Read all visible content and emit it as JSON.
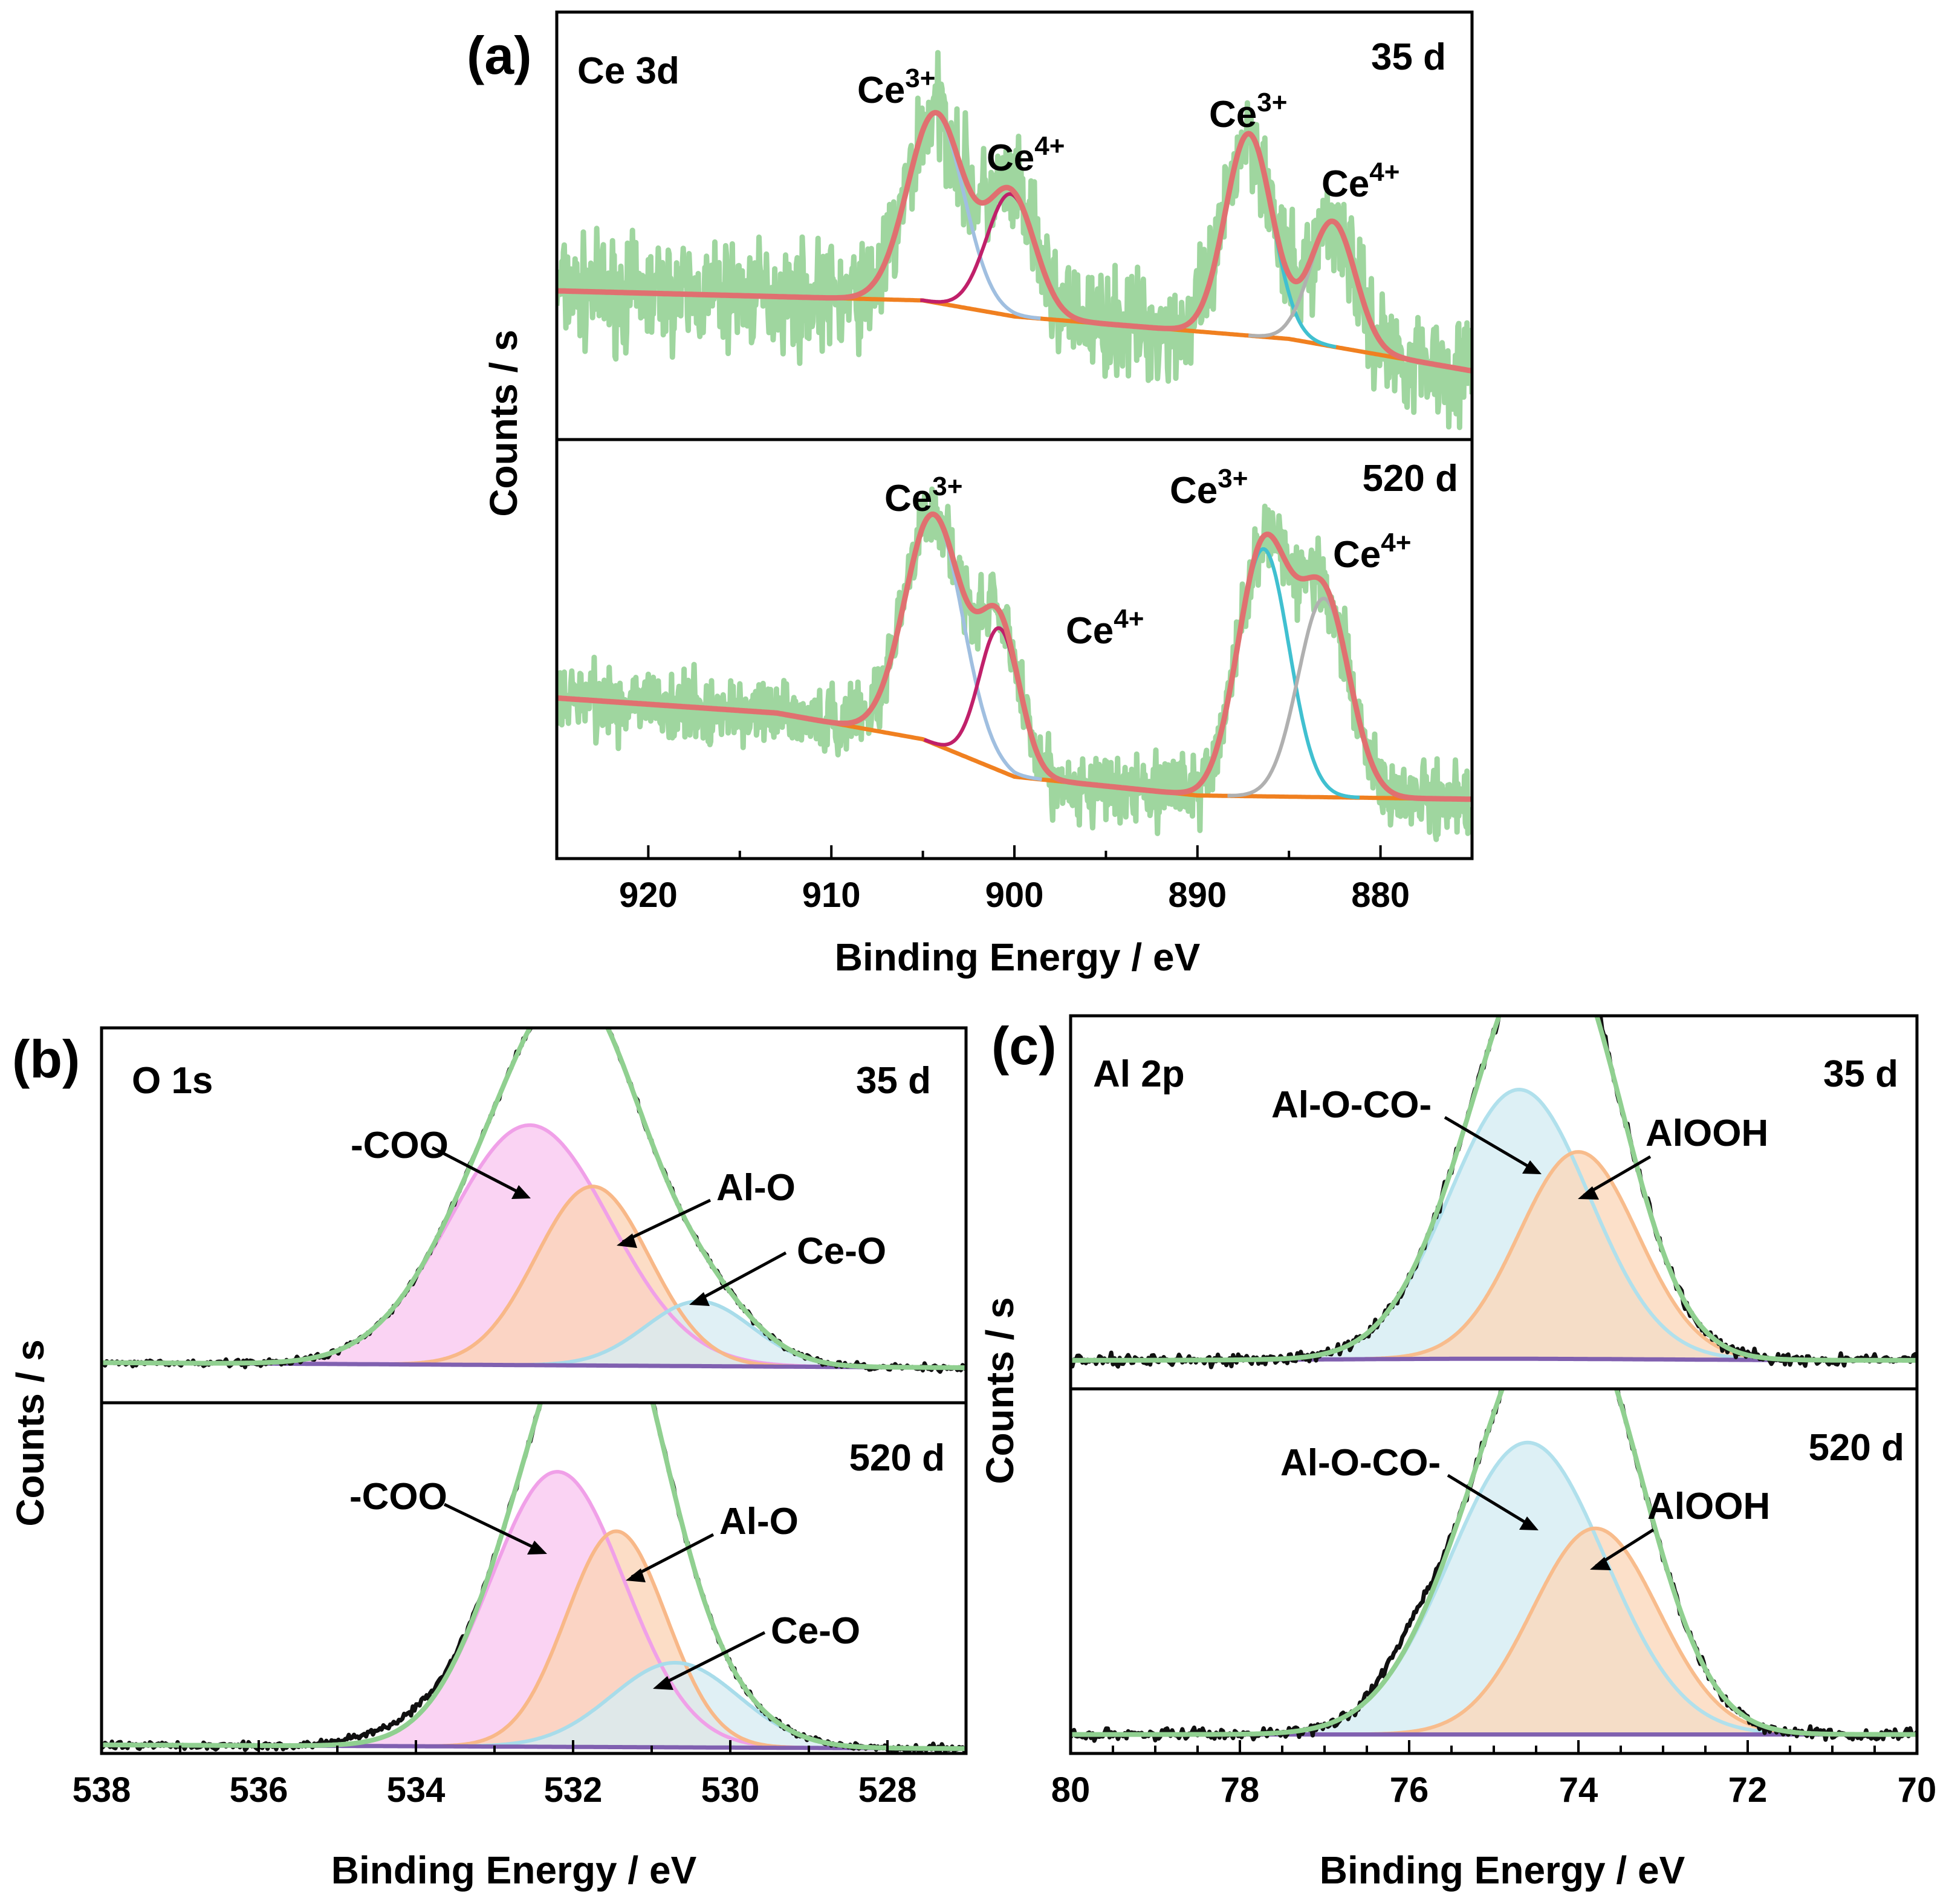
{
  "colors": {
    "raw_a": "#9fd69f",
    "envelope_a": "#e07070",
    "background": "#f08020",
    "ce3_main": "#a0bfe0",
    "ce4_main": "#c0206a",
    "ce3_second": "#40c0d0",
    "ce4_second": "#b0b0b0",
    "raw_bc": "#101010",
    "envelope_bc": "#90d090",
    "baseline_bc": "#8060b0",
    "cooh_fill": "#f9c8f0",
    "cooh_line": "#f0a0e8",
    "alo_fill": "#fbd4b8",
    "alo_line": "#f8b888",
    "ceo_fill": "#d8ecf2",
    "ceo_line": "#a8dcea",
    "al_o_co_fill": "#d4ecf2",
    "al_o_co_line": "#b0e0ec",
    "alooh_fill": "#fbd8bc",
    "alooh_line": "#f8bc8c"
  },
  "chart_data": [
    {
      "id": "a",
      "type": "line",
      "panel_label": "(a)",
      "element": "Ce 3d",
      "xlabel": "Binding Energy / eV",
      "ylabel": "Counts / s",
      "xlim": [
        925,
        875
      ],
      "xticks": [
        920,
        910,
        900,
        890,
        880
      ],
      "xtick_labels": [
        "920",
        "910",
        "900",
        "890",
        "880"
      ],
      "subplots": [
        {
          "time": "35 d",
          "ylim": [
            0,
            100
          ],
          "baseline": [
            [
              925,
              30
            ],
            [
              905,
              27
            ],
            [
              900,
              22
            ],
            [
              885,
              15
            ],
            [
              875,
              5
            ]
          ],
          "peaks": [
            {
              "label": "Ce3+",
              "label_main": "Ce",
              "label_sup": "3+",
              "center": 904.3,
              "height": 59,
              "fwhm": 3.6
            },
            {
              "label": "Ce4+",
              "label_main": "Ce",
              "label_sup": "4+",
              "center": 900.2,
              "height": 38,
              "fwhm": 3.1
            },
            {
              "label": "Ce3+",
              "label_main": "Ce",
              "label_sup": "3+",
              "center": 887.2,
              "height": 63,
              "fwhm": 3.0
            },
            {
              "label": "Ce4+",
              "label_main": "Ce",
              "label_sup": "4+",
              "center": 882.6,
              "height": 39,
              "fwhm": 2.9
            }
          ]
        },
        {
          "time": "520 d",
          "ylim": [
            0,
            100
          ],
          "baseline": [
            [
              925,
              38
            ],
            [
              913,
              34
            ],
            [
              905,
              27
            ],
            [
              900,
              17
            ],
            [
              890,
              12
            ],
            [
              875,
              11
            ]
          ],
          "peaks": [
            {
              "label": "Ce3+",
              "label_main": "Ce",
              "label_sup": "3+",
              "center": 904.4,
              "height": 61,
              "fwhm": 3.7
            },
            {
              "label": "Ce4+",
              "label_main": "Ce",
              "label_sup": "4+",
              "center": 900.8,
              "height": 38,
              "fwhm": 2.6
            },
            {
              "label": "Ce3+",
              "label_main": "Ce",
              "label_sup": "3+",
              "center": 886.4,
              "height": 66,
              "fwhm": 3.3
            },
            {
              "label": "Ce4+",
              "label_main": "Ce",
              "label_sup": "4+",
              "center": 883.1,
              "height": 53,
              "fwhm": 3.3
            }
          ],
          "extra_label": {
            "label_main": "Ce",
            "label_sup": "4+"
          }
        }
      ]
    },
    {
      "id": "b",
      "type": "area",
      "panel_label": "(b)",
      "element": "O 1s",
      "xlabel": "Binding Energy / eV",
      "ylabel": "Counts / s",
      "xlim": [
        538,
        527
      ],
      "xticks": [
        538,
        536,
        534,
        532,
        530,
        528
      ],
      "xtick_labels": [
        "538",
        "536",
        "534",
        "532",
        "530",
        "528"
      ],
      "subplots": [
        {
          "time": "35 d",
          "ylim": [
            0,
            100
          ],
          "peaks": [
            {
              "label": "-COO",
              "center": 532.55,
              "height": 63,
              "fwhm": 2.4
            },
            {
              "label": "Al-O",
              "center": 531.75,
              "height": 47,
              "fwhm": 1.7
            },
            {
              "label": "Ce-O",
              "center": 530.4,
              "height": 17,
              "fwhm": 1.6
            }
          ]
        },
        {
          "time": "520 d",
          "ylim": [
            0,
            100
          ],
          "peaks": [
            {
              "label": "-COO",
              "center": 532.2,
              "height": 65,
              "fwhm": 2.0
            },
            {
              "label": "Al-O",
              "center": 531.45,
              "height": 51,
              "fwhm": 1.5
            },
            {
              "label": "Ce-O",
              "center": 530.7,
              "height": 20,
              "fwhm": 1.9
            }
          ]
        }
      ]
    },
    {
      "id": "c",
      "type": "area",
      "panel_label": "(c)",
      "element": "Al 2p",
      "xlabel": "Binding Energy / eV",
      "ylabel": "Counts / s",
      "xlim": [
        80,
        70
      ],
      "xticks": [
        80,
        78,
        76,
        74,
        72,
        70
      ],
      "xtick_labels": [
        "80",
        "78",
        "76",
        "74",
        "72",
        "70"
      ],
      "subplots": [
        {
          "time": "35 d",
          "ylim": [
            0,
            100
          ],
          "peaks": [
            {
              "label": "Al-O-CO-",
              "center": 74.7,
              "height": 65,
              "fwhm": 1.95
            },
            {
              "label": "AlOOH",
              "center": 74.0,
              "height": 50,
              "fwhm": 1.65
            }
          ]
        },
        {
          "time": "520 d",
          "ylim": [
            0,
            100
          ],
          "peaks": [
            {
              "label": "Al-O-CO-",
              "center": 74.6,
              "height": 68,
              "fwhm": 2.15
            },
            {
              "label": "AlOOH",
              "center": 73.8,
              "height": 48,
              "fwhm": 1.75
            }
          ]
        }
      ]
    }
  ]
}
